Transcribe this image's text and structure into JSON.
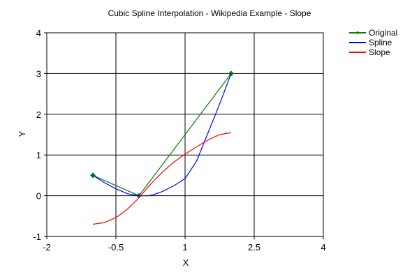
{
  "chart_data": {
    "type": "line",
    "title": "Cubic Spline Interpolation - Wikipedia Example - Slope",
    "xlabel": "X",
    "ylabel": "Y",
    "xlim": [
      -2,
      4
    ],
    "ylim": [
      -1,
      4
    ],
    "x_tick_values": [
      -2,
      -0.5,
      1,
      2.5,
      4
    ],
    "x_tick_labels": [
      "-2",
      "-0.5",
      "1",
      "2.5",
      "4"
    ],
    "y_tick_values": [
      -1,
      0,
      1,
      2,
      3,
      4
    ],
    "y_tick_labels": [
      "-1",
      "0",
      "1",
      "2",
      "3",
      "4"
    ],
    "grid": true,
    "legend_position": "top-right",
    "series": [
      {
        "name": "Original",
        "color": "#008000",
        "markers": true,
        "x": [
          -1,
          0,
          2
        ],
        "y": [
          0.5,
          0,
          3
        ]
      },
      {
        "name": "Spline",
        "color": "#0000ff",
        "markers": false,
        "x": [
          -1,
          -0.75,
          -0.5,
          -0.25,
          0,
          0.1,
          0.2,
          0.3,
          0.4,
          0.5,
          0.75,
          1,
          1.25,
          1.5,
          1.75,
          2
        ],
        "y": [
          0.5,
          0.32,
          0.17,
          0.05,
          0,
          0.0,
          0.0,
          0.02,
          0.06,
          0.1,
          0.24,
          0.42,
          0.85,
          1.55,
          2.25,
          3
        ]
      },
      {
        "name": "Slope",
        "color": "#ff0000",
        "markers": false,
        "x": [
          -1,
          -0.75,
          -0.5,
          -0.25,
          0,
          0.25,
          0.5,
          0.75,
          1,
          1.25,
          1.5,
          1.75,
          2
        ],
        "y": [
          -0.7,
          -0.66,
          -0.54,
          -0.33,
          -0.05,
          0.28,
          0.57,
          0.82,
          1.02,
          1.2,
          1.37,
          1.5,
          1.55
        ]
      }
    ]
  }
}
